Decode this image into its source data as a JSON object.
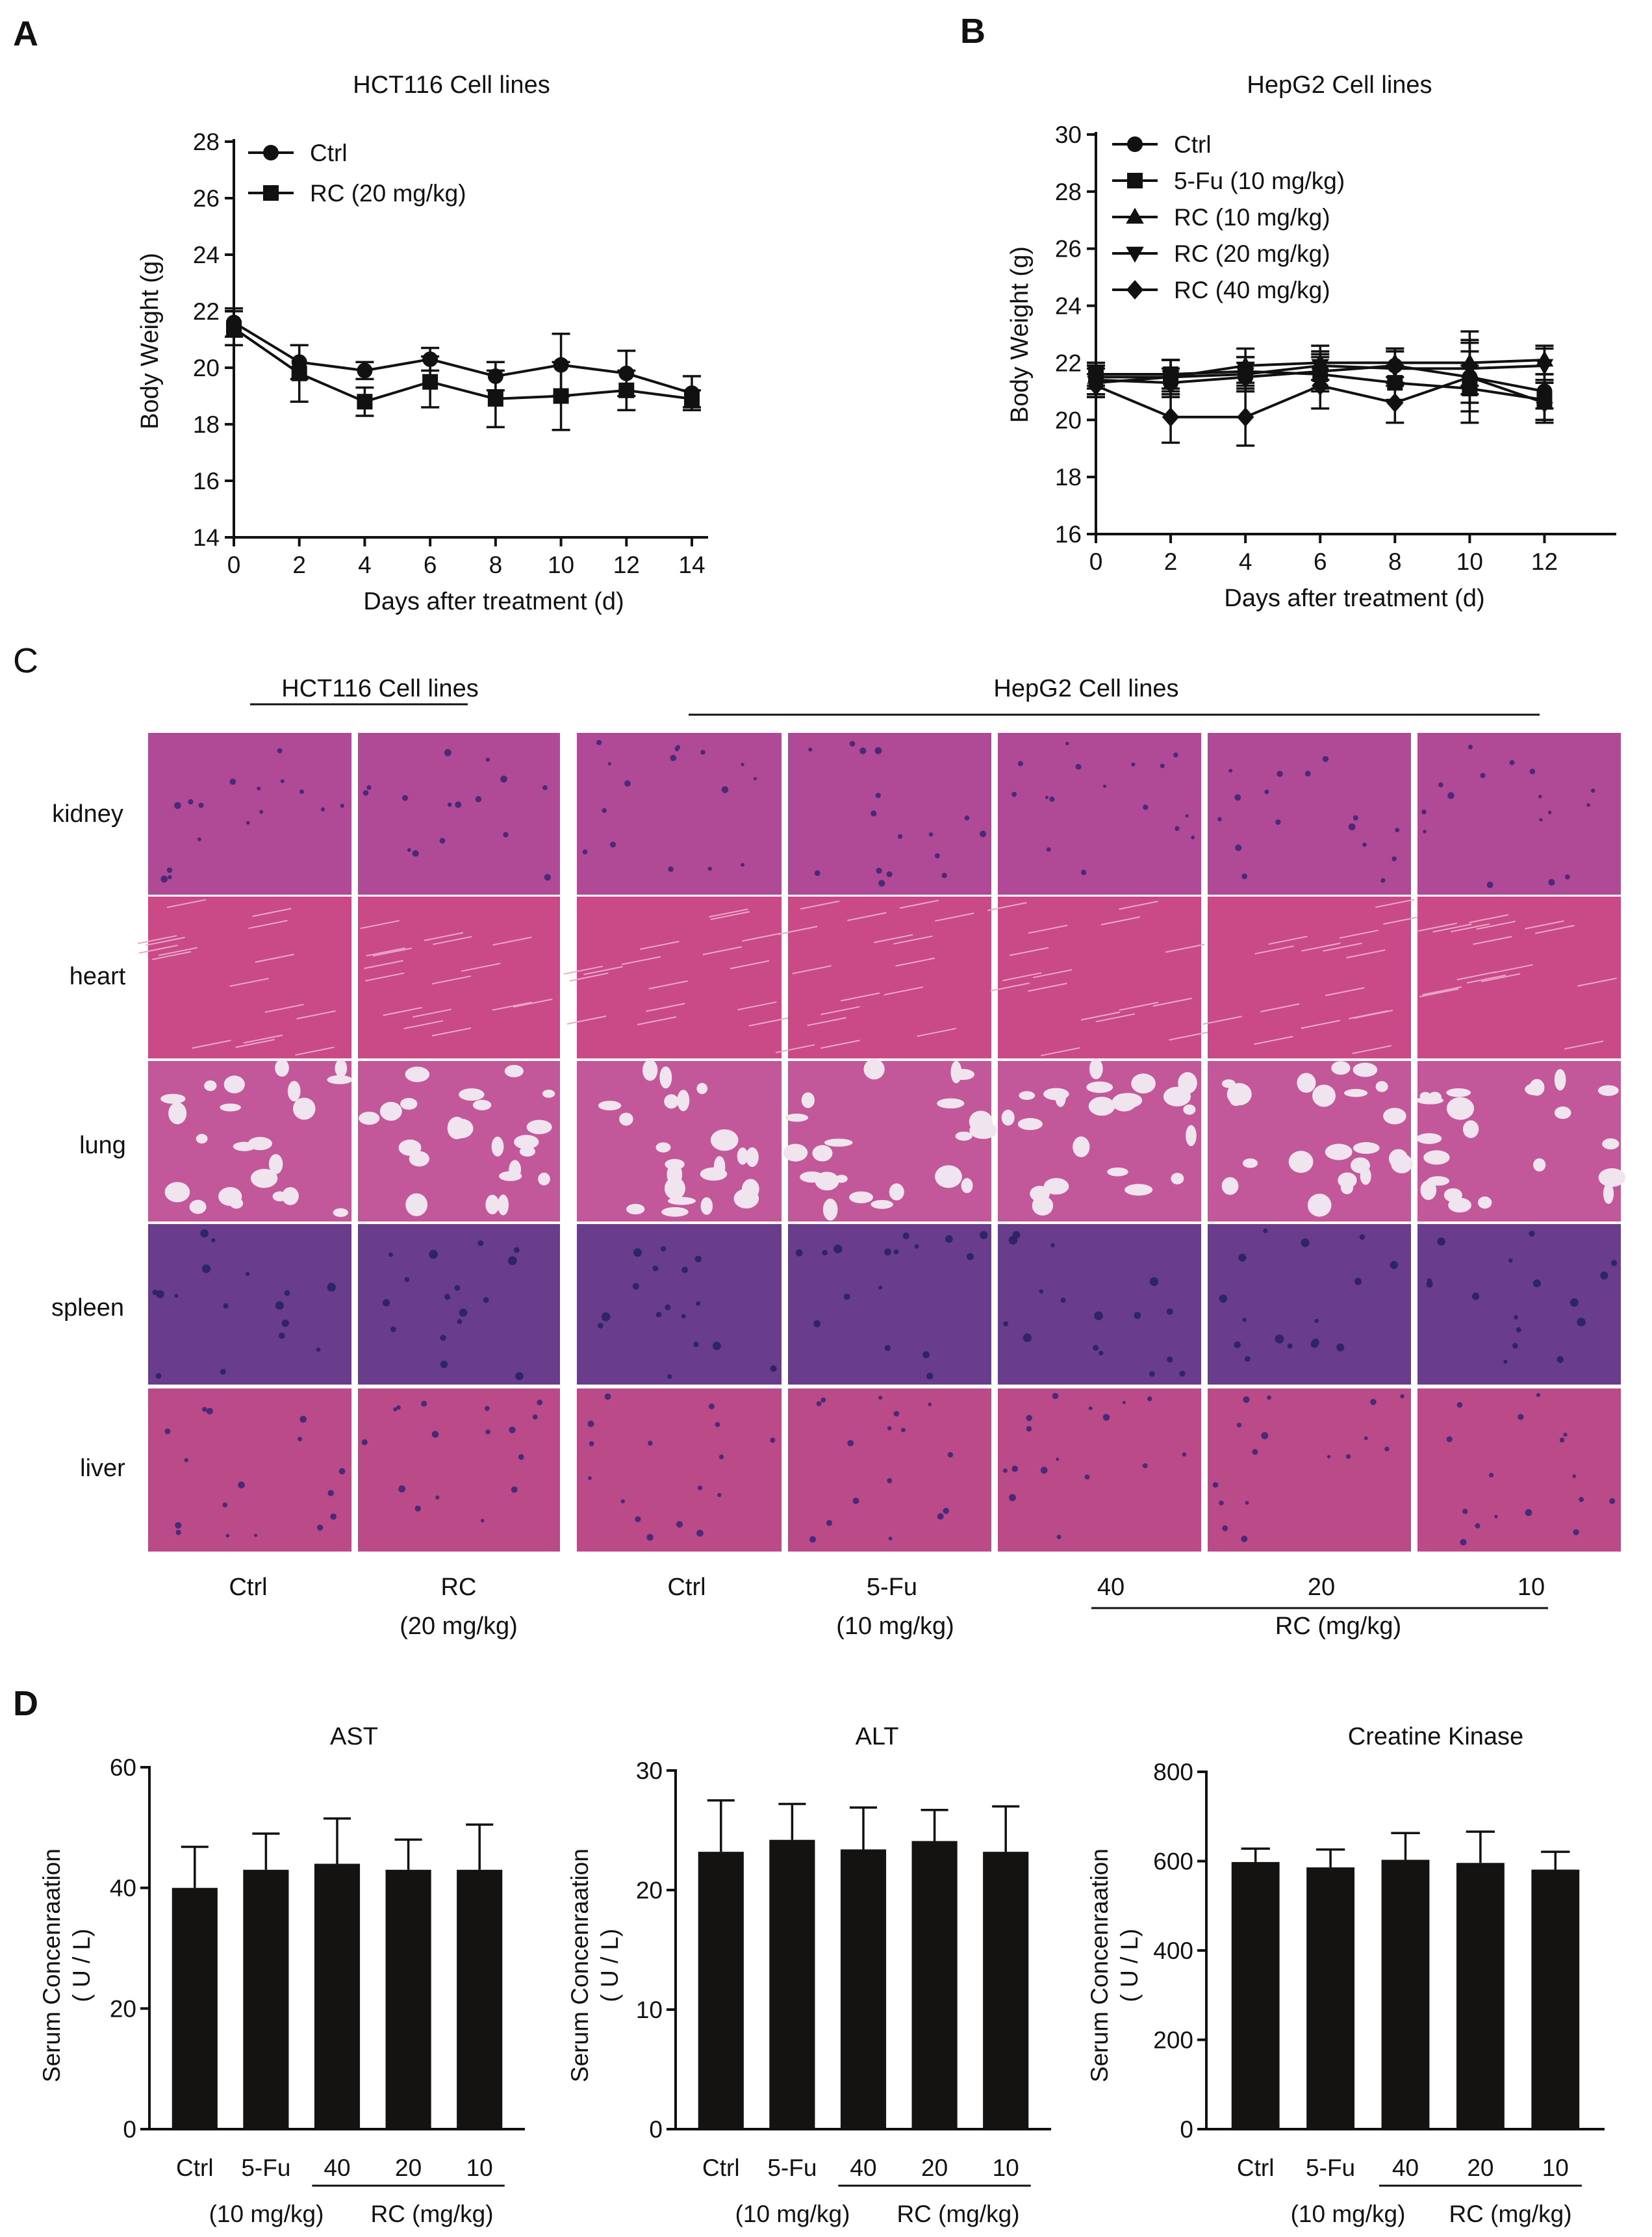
{
  "panels": {
    "a": {
      "letter": "A",
      "title": "HCT116 Cell lines"
    },
    "b": {
      "letter": "B",
      "title": "HepG2 Cell lines"
    },
    "c": {
      "letter": "C",
      "group_left": "HCT116 Cell lines",
      "group_right": "HepG2 Cell lines",
      "row_labels": [
        "kidney",
        "heart",
        "lung",
        "spleen",
        "liver"
      ],
      "col_labels": {
        "ctrl_left": "Ctrl",
        "rc_left": "RC",
        "rc_left_dose": "(20 mg/kg)",
        "ctrl_right": "Ctrl",
        "fu": "5-Fu",
        "fu_dose": "(10 mg/kg)",
        "d40": "40",
        "d20": "20",
        "d10": "10",
        "rc_group": "RC (mg/kg)"
      },
      "stain_colors": {
        "kidney": "#b04a96",
        "heart": "#c94a86",
        "lung": "#c2579a",
        "spleen": "#6a3c8c",
        "liver": "#bb4b88"
      }
    },
    "d": {
      "letter": "D"
    }
  },
  "chart_data": [
    {
      "type": "line",
      "title": "HCT116 Cell lines",
      "xlabel": "Days after treatment (d)",
      "ylabel": "Body Weight (g)",
      "xlim": [
        0,
        14
      ],
      "ylim": [
        14,
        28
      ],
      "x_ticks": [
        0,
        2,
        4,
        6,
        8,
        10,
        12,
        14
      ],
      "y_ticks": [
        14,
        16,
        18,
        20,
        22,
        24,
        26,
        28
      ],
      "legend": "top-left",
      "x": [
        0,
        2,
        4,
        6,
        8,
        10,
        12,
        14
      ],
      "series": [
        {
          "name": "Ctrl",
          "marker": "circle",
          "values": [
            21.6,
            20.2,
            19.9,
            20.3,
            19.7,
            20.1,
            19.8,
            19.1
          ],
          "errors": [
            0.5,
            0.6,
            0.3,
            0.4,
            0.5,
            1.1,
            0.8,
            0.6
          ]
        },
        {
          "name": "RC (20 mg/kg)",
          "marker": "square",
          "values": [
            21.4,
            19.8,
            18.8,
            19.5,
            18.9,
            19.0,
            19.2,
            18.9
          ],
          "errors": [
            0.6,
            1.0,
            0.5,
            0.9,
            1.0,
            1.2,
            0.7,
            0.3
          ]
        }
      ]
    },
    {
      "type": "line",
      "title": "HepG2 Cell lines",
      "xlabel": "Days after treatment (d)",
      "ylabel": "Body Weight (g)",
      "xlim": [
        0,
        13
      ],
      "ylim": [
        16,
        30
      ],
      "x_ticks": [
        0,
        2,
        4,
        6,
        8,
        10,
        12
      ],
      "y_ticks": [
        16,
        18,
        20,
        22,
        24,
        26,
        28,
        30
      ],
      "legend": "top-left",
      "x": [
        0,
        2,
        4,
        6,
        8,
        10,
        12
      ],
      "series": [
        {
          "name": "Ctrl",
          "marker": "circle",
          "values": [
            21.4,
            21.3,
            21.5,
            21.7,
            21.9,
            21.5,
            21.0
          ],
          "errors": [
            0.5,
            0.5,
            0.5,
            0.6,
            0.6,
            0.9,
            0.6
          ]
        },
        {
          "name": "5-Fu (10 mg/kg)",
          "marker": "square",
          "values": [
            21.6,
            21.6,
            21.7,
            21.6,
            21.3,
            21.1,
            20.7
          ],
          "errors": [
            0.4,
            0.5,
            0.5,
            0.6,
            0.6,
            0.8,
            0.7
          ]
        },
        {
          "name": "RC (10 mg/kg)",
          "marker": "triangle-up",
          "values": [
            21.5,
            21.5,
            21.9,
            22.0,
            22.0,
            22.0,
            22.1
          ],
          "errors": [
            0.4,
            0.6,
            0.6,
            0.6,
            0.5,
            0.8,
            0.5
          ]
        },
        {
          "name": "RC (20 mg/kg)",
          "marker": "triangle-down",
          "values": [
            21.3,
            21.5,
            21.6,
            21.9,
            21.8,
            21.8,
            21.9
          ],
          "errors": [
            0.5,
            0.6,
            0.6,
            0.5,
            0.6,
            0.9,
            0.6
          ]
        },
        {
          "name": "RC (40 mg/kg)",
          "marker": "diamond",
          "values": [
            21.2,
            20.1,
            20.1,
            21.2,
            20.6,
            21.5,
            20.6
          ],
          "errors": [
            0.4,
            0.9,
            1.0,
            0.8,
            0.7,
            1.6,
            0.7
          ]
        }
      ]
    },
    {
      "type": "bar",
      "title": "AST",
      "ylabel": "Serum Concenraation\n( U / L)",
      "ylim": [
        0,
        60
      ],
      "y_ticks": [
        0,
        20,
        40,
        60
      ],
      "categories": [
        "Ctrl",
        "5-Fu",
        "40",
        "20",
        "10"
      ],
      "values": [
        40.0,
        43.0,
        44.0,
        43.0,
        43.0
      ],
      "errors": [
        6.8,
        6.0,
        7.5,
        5.0,
        7.5
      ],
      "fu_dose": "(10 mg/kg)",
      "rc_group": "RC (mg/kg)",
      "bar_color": "#151212"
    },
    {
      "type": "bar",
      "title": "ALT",
      "ylabel": "Serum Concenraation\n( U / L)",
      "ylim": [
        0,
        30
      ],
      "y_ticks": [
        0,
        10,
        20,
        30
      ],
      "categories": [
        "Ctrl",
        "5-Fu",
        "40",
        "20",
        "10"
      ],
      "values": [
        23.2,
        24.2,
        23.4,
        24.1,
        23.2
      ],
      "errors": [
        4.3,
        3.0,
        3.5,
        2.6,
        3.8
      ],
      "fu_dose": "(10 mg/kg)",
      "rc_group": "RC (mg/kg)",
      "bar_color": "#151212"
    },
    {
      "type": "bar",
      "title": "Creatine Kinase",
      "ylabel": "Serum Concenraation\n( U / L)",
      "ylim": [
        0,
        800
      ],
      "y_ticks": [
        0,
        200,
        400,
        600,
        800
      ],
      "categories": [
        "Ctrl",
        "5-Fu",
        "40",
        "20",
        "10"
      ],
      "values": [
        598,
        586,
        603,
        596,
        581
      ],
      "errors": [
        30,
        40,
        60,
        70,
        40
      ],
      "fu_dose": "(10 mg/kg)",
      "rc_group": "RC (mg/kg)",
      "bar_color": "#151212"
    }
  ]
}
